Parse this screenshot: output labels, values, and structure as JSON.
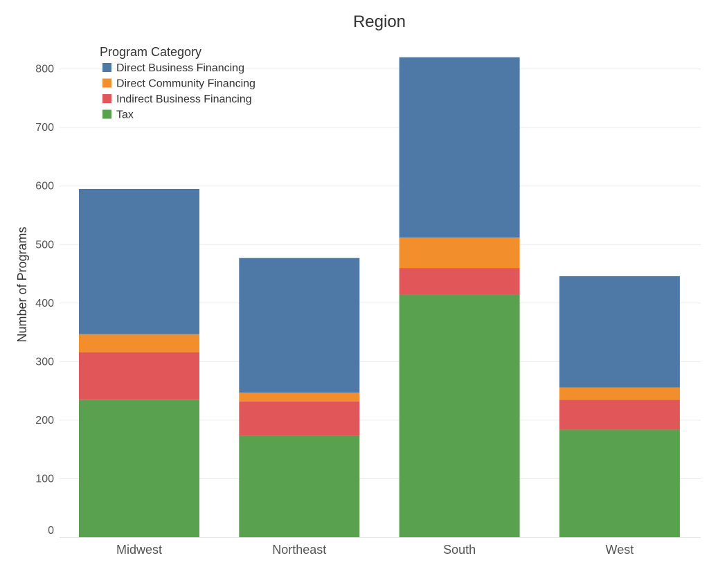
{
  "chart_data": {
    "type": "bar",
    "stacked": true,
    "title": "Region",
    "xlabel": "",
    "ylabel": "Number of Programs",
    "ylim": [
      0,
      850
    ],
    "yticks": [
      0,
      100,
      200,
      300,
      400,
      500,
      600,
      700,
      800
    ],
    "categories": [
      "Midwest",
      "Northeast",
      "South",
      "West"
    ],
    "legend_title": "Program Category",
    "legend_position": "top-left",
    "grid": true,
    "series": [
      {
        "name": "Tax",
        "color": "#59a14f",
        "values": [
          235,
          174,
          414,
          184
        ]
      },
      {
        "name": "Indirect Business Financing",
        "color": "#e15759",
        "values": [
          81,
          58,
          46,
          51
        ]
      },
      {
        "name": "Direct Community Financing",
        "color": "#f28e2b",
        "values": [
          31,
          15,
          52,
          21
        ]
      },
      {
        "name": "Direct Business Financing",
        "color": "#4e79a7",
        "values": [
          248,
          230,
          308,
          190
        ]
      }
    ],
    "legend_order": [
      "Direct Business Financing",
      "Direct Community Financing",
      "Indirect Business Financing",
      "Tax"
    ]
  }
}
